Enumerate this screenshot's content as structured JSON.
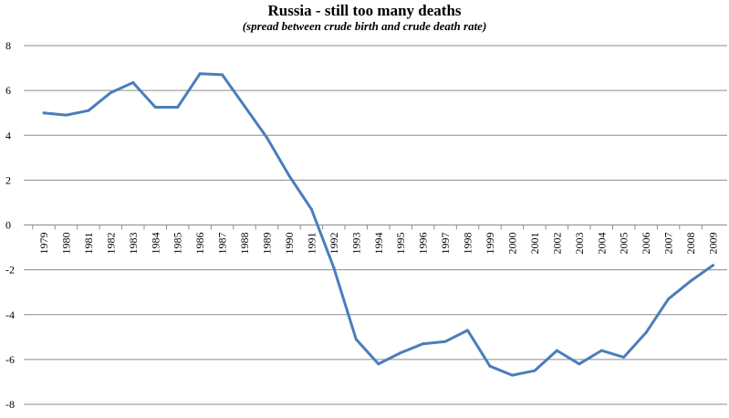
{
  "chart_data": {
    "type": "line",
    "title": "Russia - still too many deaths",
    "subtitle": "(spread between  crude birth and crude death rate)",
    "xlabel": "",
    "ylabel": "",
    "ylim": [
      -8,
      8
    ],
    "yticks": [
      "8",
      "6",
      "4",
      "2",
      "0",
      "-2",
      "-4",
      "-6",
      "-8"
    ],
    "grid": true,
    "legend": "none",
    "line_color": "#4a7ebb",
    "categories": [
      "1979",
      "1980",
      "1981",
      "1982",
      "1983",
      "1984",
      "1985",
      "1986",
      "1987",
      "1988",
      "1989",
      "1990",
      "1991",
      "1992",
      "1993",
      "1994",
      "1995",
      "1996",
      "1997",
      "1998",
      "1999",
      "2000",
      "2001",
      "2002",
      "2003",
      "2004",
      "2005",
      "2006",
      "2007",
      "2008",
      "2009"
    ],
    "series": [
      {
        "values": [
          5.0,
          4.9,
          5.1,
          5.9,
          6.35,
          5.25,
          5.25,
          6.75,
          6.7,
          5.3,
          3.9,
          2.2,
          0.7,
          -1.9,
          -5.1,
          -6.2,
          -5.7,
          -5.3,
          -5.2,
          -4.7,
          -6.3,
          -6.7,
          -6.5,
          -5.6,
          -6.2,
          -5.6,
          -5.9,
          -4.8,
          -3.3,
          -2.5,
          -1.8
        ]
      }
    ]
  }
}
